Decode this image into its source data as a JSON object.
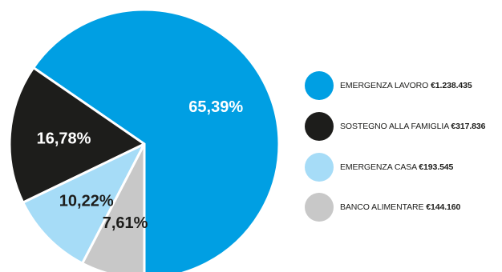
{
  "chart_data": {
    "type": "pie",
    "slices": [
      {
        "label": "EMERGENZA LAVORO",
        "amount": "€1.238.435",
        "value": 65.39,
        "value_label": "65,39%",
        "color": "#009fe3",
        "label_color": "#ffffff"
      },
      {
        "label": "SOSTEGNO ALLA FAMIGLIA",
        "amount": "€317.836",
        "value": 16.78,
        "value_label": "16,78%",
        "color": "#1d1d1b",
        "label_color": "#ffffff"
      },
      {
        "label": "EMERGENZA CASA",
        "amount": "€193.545",
        "value": 10.22,
        "value_label": "10,22%",
        "color": "#a6dcf7",
        "label_color": "#1d1d1b"
      },
      {
        "label": "BANCO ALIMENTARE",
        "amount": "€144.160",
        "value": 7.61,
        "value_label": "7,61%",
        "color": "#c8c8c8",
        "label_color": "#1d1d1b"
      }
    ],
    "legend_position": "right",
    "start_direction": "bottom",
    "order": "counterclockwise",
    "slice_border_color": "#ffffff"
  }
}
